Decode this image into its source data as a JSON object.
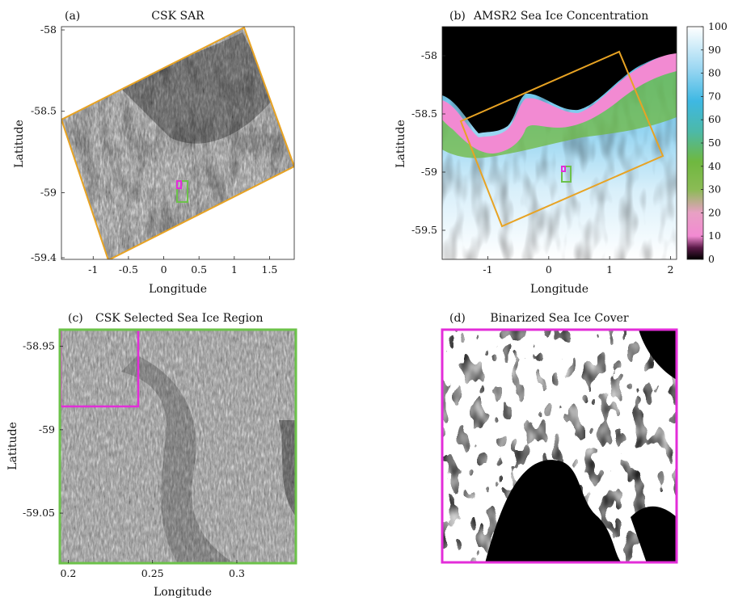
{
  "panels": [
    {
      "id": "a",
      "label": "(a)",
      "title": "CSK SAR",
      "xlabel": "Longitude",
      "ylabel": "Latitude",
      "xticks": [
        "-1",
        "-0.5",
        "0",
        "0.5",
        "1",
        "1.5"
      ],
      "yticks": [
        "-58",
        "-58.5",
        "-59",
        "-59.4"
      ]
    },
    {
      "id": "b",
      "label": "(b)",
      "title": "AMSR2 Sea Ice Concentration",
      "xlabel": "Longitude",
      "ylabel": "Latitude",
      "xticks": [
        "-1",
        "0",
        "1",
        "2"
      ],
      "yticks": [
        "-58",
        "-58.5",
        "-59",
        "-59.5"
      ],
      "colorbar_ticks": [
        "100",
        "90",
        "80",
        "70",
        "60",
        "50",
        "40",
        "30",
        "20",
        "10",
        "0"
      ]
    },
    {
      "id": "c",
      "label": "(c)",
      "title": "CSK Selected Sea Ice Region",
      "xlabel": "Longitude",
      "ylabel": "Latitude",
      "xticks": [
        "0.2",
        "0.25",
        "0.3"
      ],
      "yticks": [
        "-58.95",
        "-59",
        "-59.05"
      ]
    },
    {
      "id": "d",
      "label": "(d)",
      "title": "Binarized Sea Ice Cover"
    }
  ],
  "chart_data": [
    {
      "type": "heatmap",
      "panel": "a",
      "title": "CSK SAR",
      "xlabel": "Longitude",
      "ylabel": "Latitude",
      "xlim": [
        -1.45,
        1.85
      ],
      "ylim": [
        -59.41,
        -57.98
      ],
      "xticks": [
        -1,
        -0.5,
        0,
        0.5,
        1,
        1.5
      ],
      "yticks": [
        -58,
        -58.5,
        -59,
        -59.4
      ],
      "annotations": [
        {
          "shape": "rectangle",
          "color": "#E8A323",
          "corners": [
            [
              1.15,
              -57.98
            ],
            [
              1.85,
              -58.85
            ],
            [
              -0.8,
              -59.41
            ],
            [
              -1.45,
              -58.55
            ]
          ]
        },
        {
          "shape": "rectangle",
          "color": "#6CC24A",
          "x": [
            0.19,
            0.33
          ],
          "y": [
            -59.08,
            -58.94
          ]
        },
        {
          "shape": "rectangle",
          "color": "#E32DD9",
          "x": [
            0.19,
            0.24
          ],
          "y": [
            -58.985,
            -58.94
          ]
        }
      ]
    },
    {
      "type": "heatmap",
      "panel": "b",
      "title": "AMSR2 Sea Ice Concentration",
      "xlabel": "Longitude",
      "ylabel": "Latitude",
      "xlim": [
        -1.75,
        2.1
      ],
      "ylim": [
        -59.75,
        -57.75
      ],
      "xticks": [
        -1,
        0,
        1,
        2
      ],
      "yticks": [
        -58,
        -58.5,
        -59,
        -59.5
      ],
      "colorbar": {
        "range": [
          0,
          100
        ],
        "ticks": [
          0,
          10,
          20,
          30,
          40,
          50,
          60,
          70,
          80,
          90,
          100
        ]
      },
      "annotations": [
        {
          "shape": "rectangle",
          "color": "#E8A323",
          "corners": [
            [
              1.15,
              -57.97
            ],
            [
              1.85,
              -58.85
            ],
            [
              -0.8,
              -59.45
            ],
            [
              -1.45,
              -58.55
            ]
          ]
        },
        {
          "shape": "rectangle",
          "color": "#6CC24A",
          "x": [
            0.19,
            0.33
          ],
          "y": [
            -59.08,
            -58.94
          ]
        },
        {
          "shape": "rectangle",
          "color": "#E32DD9",
          "x": [
            0.19,
            0.24
          ],
          "y": [
            -58.985,
            -58.94
          ]
        }
      ]
    },
    {
      "type": "heatmap",
      "panel": "c",
      "title": "CSK Selected Sea Ice Region",
      "xlabel": "Longitude",
      "ylabel": "Latitude",
      "xlim": [
        0.195,
        0.335
      ],
      "ylim": [
        -59.08,
        -58.94
      ],
      "xticks": [
        0.2,
        0.25,
        0.3
      ],
      "yticks": [
        -58.95,
        -59,
        -59.05
      ],
      "annotations": [
        {
          "shape": "rectangle",
          "color": "#E32DD9",
          "x": [
            0.195,
            0.24
          ],
          "y": [
            -58.985,
            -58.94
          ]
        }
      ]
    },
    {
      "type": "heatmap",
      "panel": "d",
      "title": "Binarized Sea Ice Cover",
      "values": [
        "ice (white)",
        "water (black)"
      ]
    }
  ],
  "colors": {
    "orange_box": "#E8A323",
    "green_box": "#6CC24A",
    "magenta_box": "#E32DD9",
    "colormap": [
      "#000000",
      "#F28AD2",
      "#6FB83F",
      "#3EB8E3",
      "#FFFFFF"
    ]
  }
}
